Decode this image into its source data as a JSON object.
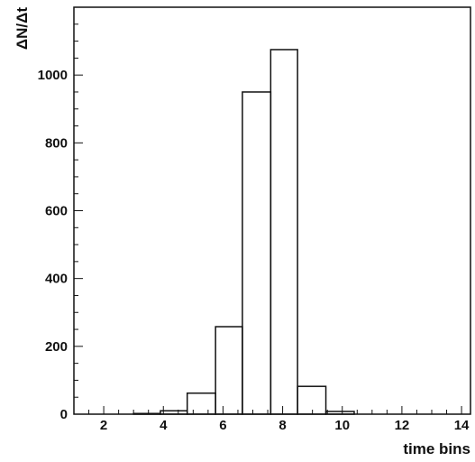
{
  "chart_data": {
    "type": "histogram",
    "title": "",
    "xlabel": "time bins",
    "ylabel": "ΔN/Δt",
    "xlim": [
      1,
      14
    ],
    "ylim": [
      0,
      1200
    ],
    "xticks": [
      2,
      4,
      6,
      8,
      10,
      12,
      14
    ],
    "yticks": [
      0,
      200,
      400,
      600,
      800,
      1000
    ],
    "grid": false,
    "bins": [
      {
        "x0": 3.0,
        "x1": 3.9,
        "value": 2
      },
      {
        "x0": 3.9,
        "x1": 4.8,
        "value": 10
      },
      {
        "x0": 4.8,
        "x1": 5.75,
        "value": 62
      },
      {
        "x0": 5.75,
        "x1": 6.65,
        "value": 258
      },
      {
        "x0": 6.65,
        "x1": 7.6,
        "value": 950
      },
      {
        "x0": 7.6,
        "x1": 8.5,
        "value": 1075
      },
      {
        "x0": 8.5,
        "x1": 9.45,
        "value": 82
      },
      {
        "x0": 9.45,
        "x1": 10.4,
        "value": 8
      }
    ],
    "line_color": "#111111"
  }
}
